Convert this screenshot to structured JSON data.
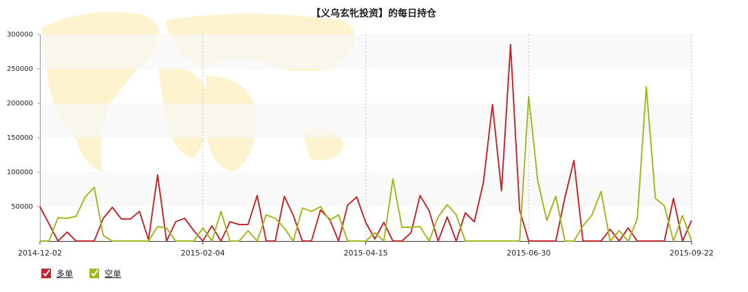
{
  "chart_data": {
    "type": "line",
    "title": "【义乌玄牝投资】的每日持仓",
    "categories": [
      "2014-12-02",
      null,
      null,
      null,
      null,
      null,
      null,
      null,
      null,
      null,
      null,
      null,
      null,
      null,
      null,
      null,
      null,
      null,
      "2015-02-04",
      null,
      null,
      null,
      null,
      null,
      null,
      null,
      null,
      null,
      null,
      null,
      null,
      null,
      null,
      null,
      null,
      null,
      "2015-04-15",
      null,
      null,
      null,
      null,
      null,
      null,
      null,
      null,
      null,
      null,
      null,
      null,
      null,
      null,
      null,
      null,
      null,
      "2015-06-30",
      null,
      null,
      null,
      null,
      null,
      null,
      null,
      null,
      null,
      null,
      null,
      null,
      null,
      null,
      null,
      null,
      null,
      "2015-09-22"
    ],
    "series": [
      {
        "name": "多单",
        "color": "#c1272d",
        "values": [
          50000,
          25000,
          0,
          13000,
          0,
          0,
          0,
          33000,
          49000,
          32000,
          32000,
          43000,
          2000,
          96000,
          0,
          28000,
          33000,
          15000,
          0,
          22000,
          0,
          28000,
          24000,
          24000,
          66000,
          0,
          0,
          65000,
          37000,
          0,
          0,
          45000,
          32000,
          0,
          52000,
          64000,
          27000,
          3000,
          27000,
          0,
          0,
          12000,
          66000,
          44000,
          0,
          35000,
          0,
          41000,
          28000,
          85000,
          198000,
          73000,
          285000,
          45000,
          0,
          0,
          0,
          0,
          63000,
          117000,
          0,
          0,
          0,
          17000,
          0,
          19000,
          0,
          0,
          0,
          0,
          62000,
          0,
          30000
        ]
      },
      {
        "name": "空单",
        "color": "#a5b61c",
        "values": [
          0,
          0,
          34000,
          33000,
          36000,
          64000,
          78000,
          8000,
          0,
          0,
          0,
          0,
          0,
          21000,
          19000,
          0,
          0,
          0,
          19000,
          0,
          43000,
          0,
          0,
          15000,
          0,
          38000,
          33000,
          19000,
          0,
          48000,
          43000,
          50000,
          30000,
          38000,
          0,
          0,
          0,
          12000,
          0,
          90000,
          20000,
          20000,
          21000,
          0,
          35000,
          53000,
          38000,
          0,
          0,
          0,
          0,
          0,
          0,
          0,
          210000,
          88000,
          30000,
          65000,
          0,
          0,
          22000,
          38000,
          72000,
          0,
          15000,
          0,
          32000,
          224000,
          62000,
          51000,
          0,
          37000,
          0
        ]
      }
    ],
    "ylim": [
      0,
      300000
    ],
    "yticks": [
      50000,
      100000,
      150000,
      200000,
      250000,
      300000
    ],
    "grid": true
  }
}
